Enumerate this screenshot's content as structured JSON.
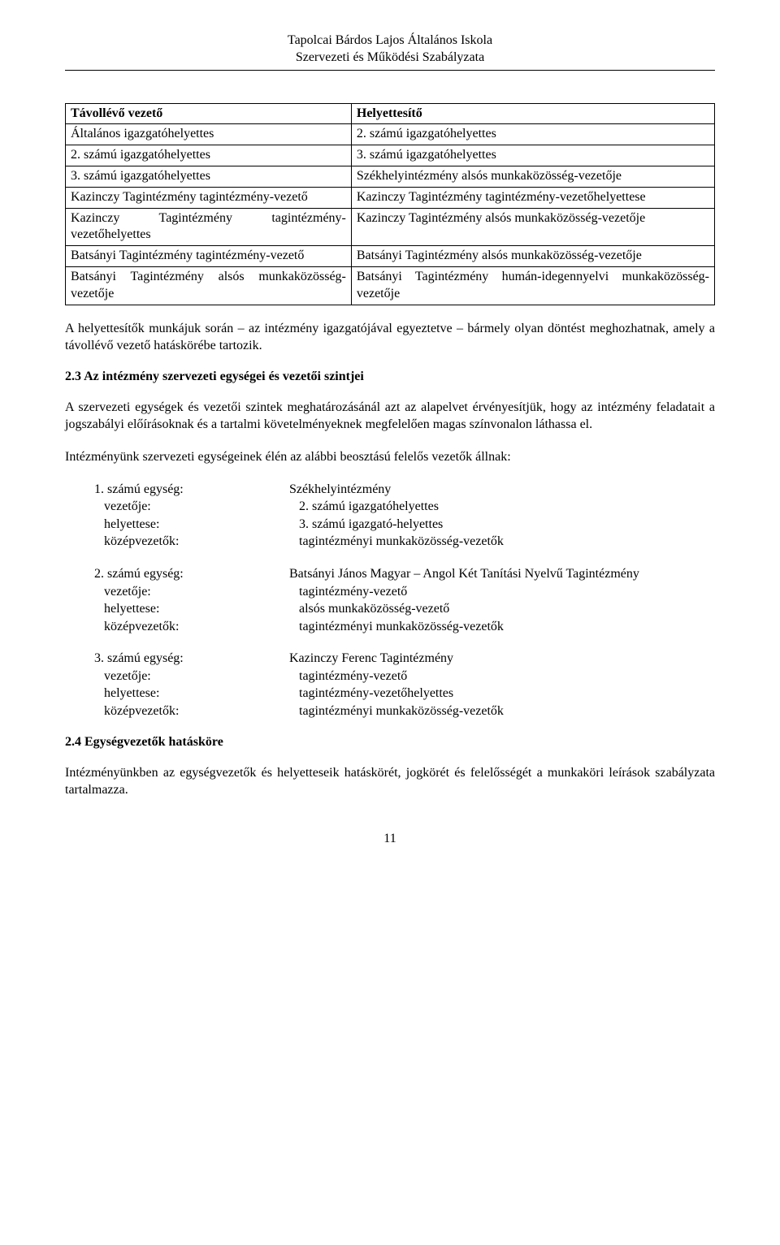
{
  "header": {
    "line1": "Tapolcai Bárdos Lajos Általános Iskola",
    "line2": "Szervezeti és Működési Szabályzata"
  },
  "tableHeaders": {
    "left": "Távollévő vezető",
    "right": "Helyettesítő"
  },
  "tableRows": [
    {
      "left": "Általános igazgatóhelyettes",
      "right": "2. számú igazgatóhelyettes"
    },
    {
      "left": "2. számú igazgatóhelyettes",
      "right": "3. számú igazgatóhelyettes"
    },
    {
      "left": "3. számú igazgatóhelyettes",
      "right": "Székhelyintézmény alsós munkaközösség-vezetője"
    },
    {
      "left": "Kazinczy Tagintézmény tagintézmény-vezető",
      "right": "Kazinczy Tagintézmény tagintézmény-vezetőhelyettese"
    },
    {
      "left": "Kazinczy Tagintézmény tagintézmény-vezetőhelyettes",
      "right": "Kazinczy Tagintézmény alsós munkaközösség-vezetője"
    },
    {
      "left": "Batsányi Tagintézmény tagintézmény-vezető",
      "right": "Batsányi Tagintézmény alsós munkaközösség-vezetője"
    },
    {
      "left": "Batsányi Tagintézmény alsós munkaközösség-vezetője",
      "right": "Batsányi Tagintézmény humán-idegennyelvi munkaközösség-vezetője"
    }
  ],
  "para1": "A helyettesítők munkájuk során – az intézmény igazgatójával egyeztetve – bármely olyan döntést meghozhatnak, amely a távollévő vezető hatáskörébe tartozik.",
  "section23Title": "2.3 Az intézmény szervezeti egységei és vezetői szintjei",
  "para2": "A szervezeti egységek és vezetői szintek meghatározásánál azt az alapelvet érvényesítjük, hogy az intézmény feladatait a jogszabályi előírásoknak és a tartalmi követelményeknek megfelelően magas színvonalon láthassa el.",
  "para3": "Intézményünk szervezeti egységeinek élén az alábbi beosztású felelős vezetők állnak:",
  "units": [
    {
      "numLabel": "1.  számú egység:",
      "numValue": "Székhelyintézmény",
      "rows": [
        {
          "label": "vezetője:",
          "value": "2. számú igazgatóhelyettes"
        },
        {
          "label": "helyettese:",
          "value": "3. számú igazgató-helyettes"
        },
        {
          "label": "középvezetők:",
          "value": "tagintézményi munkaközösség-vezetők"
        }
      ]
    },
    {
      "numLabel": "2.  számú egység:",
      "numValue": "Batsányi János Magyar – Angol Két Tanítási Nyelvű Tagintézmény",
      "rows": [
        {
          "label": "vezetője:",
          "value": "tagintézmény-vezető"
        },
        {
          "label": "helyettese:",
          "value": "alsós munkaközösség-vezető"
        },
        {
          "label": "középvezetők:",
          "value": "tagintézményi munkaközösség-vezetők"
        }
      ]
    },
    {
      "numLabel": "3.  számú egység:",
      "numValue": "Kazinczy Ferenc Tagintézmény",
      "rows": [
        {
          "label": "vezetője:",
          "value": "tagintézmény-vezető"
        },
        {
          "label": "helyettese:",
          "value": "tagintézmény-vezetőhelyettes"
        },
        {
          "label": "középvezetők:",
          "value": "tagintézményi munkaközösség-vezetők"
        }
      ]
    }
  ],
  "section24Title": "2.4 Egységvezetők hatásköre",
  "para4": "Intézményünkben az egységvezetők és helyetteseik hatáskörét, jogkörét és felelősségét a munkaköri leírások szabályzata tartalmazza.",
  "pageNumber": "11"
}
